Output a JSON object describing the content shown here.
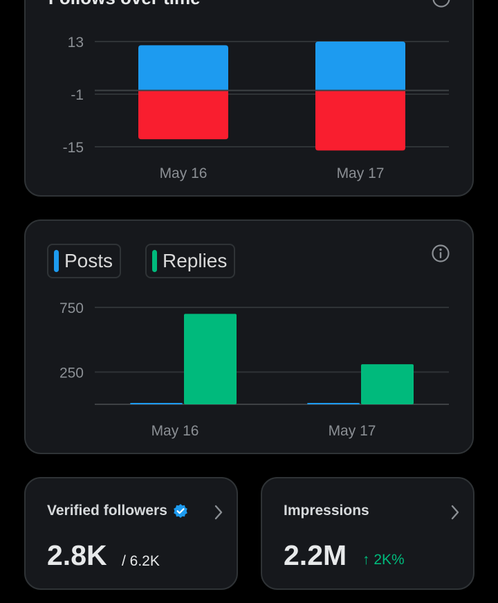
{
  "follows_card": {
    "title": "Follows over time"
  },
  "activity_card": {
    "legend": [
      {
        "label": "Posts",
        "color": "#1d9bf0"
      },
      {
        "label": "Replies",
        "color": "#00ba7c"
      }
    ]
  },
  "verified_followers": {
    "label": "Verified followers",
    "value": "2.8K",
    "total": "/ 6.2K"
  },
  "impressions": {
    "label": "Impressions",
    "value": "2.2M",
    "change": "↑ 2K%"
  },
  "colors": {
    "follows": "#1d9bf0",
    "unfollows": "#f91e2f",
    "posts": "#1d9bf0",
    "replies": "#00ba7c",
    "gridline": "#2f3336",
    "tick_text": "#8b8f94"
  },
  "chart_data": [
    {
      "type": "bar",
      "stacked": true,
      "title": "Follows over time",
      "categories": [
        "May 16",
        "May 17"
      ],
      "yticks": [
        13,
        -1,
        -15
      ],
      "ylim": [
        -15,
        13
      ],
      "series": [
        {
          "color": "#1d9bf0",
          "values": [
            12,
            13
          ]
        },
        {
          "color": "#f91e2f",
          "values": [
            -13,
            -16
          ]
        }
      ]
    },
    {
      "type": "bar",
      "categories": [
        "May 16",
        "May 17"
      ],
      "yticks": [
        750,
        250
      ],
      "ylim": [
        0,
        750
      ],
      "series": [
        {
          "name": "Posts",
          "color": "#1d9bf0",
          "values": [
            8,
            10
          ]
        },
        {
          "name": "Replies",
          "color": "#00ba7c",
          "values": [
            700,
            310
          ]
        }
      ]
    }
  ]
}
